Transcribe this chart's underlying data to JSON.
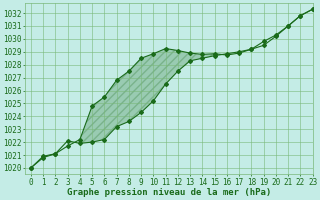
{
  "title": "Graphe pression niveau de la mer (hPa)",
  "background_color": "#c4ece6",
  "grid_color": "#7ab87a",
  "line_color": "#1a6b1a",
  "xlim": [
    -0.5,
    23
  ],
  "ylim": [
    1019.5,
    1032.8
  ],
  "xticks": [
    0,
    1,
    2,
    3,
    4,
    5,
    6,
    7,
    8,
    9,
    10,
    11,
    12,
    13,
    14,
    15,
    16,
    17,
    18,
    19,
    20,
    21,
    22,
    23
  ],
  "yticks": [
    1020,
    1021,
    1022,
    1023,
    1024,
    1025,
    1026,
    1027,
    1028,
    1029,
    1030,
    1031,
    1032
  ],
  "series1_x": [
    0,
    1,
    2,
    3,
    4,
    5,
    6,
    7,
    8,
    9,
    10,
    11,
    12,
    13,
    14,
    15,
    16,
    17,
    18,
    19,
    20,
    21,
    22,
    23
  ],
  "series1_y": [
    1020.0,
    1020.8,
    1021.1,
    1021.7,
    1022.2,
    1024.8,
    1025.5,
    1026.8,
    1027.5,
    1028.5,
    1028.85,
    1029.25,
    1029.1,
    1028.9,
    1028.8,
    1028.85,
    1028.75,
    1028.9,
    1029.2,
    1029.5,
    1030.2,
    1031.0,
    1031.8,
    1032.3
  ],
  "series2_x": [
    0,
    1,
    2,
    3,
    4,
    5,
    6,
    7,
    8,
    9,
    10,
    11,
    12,
    13,
    14,
    15,
    16,
    17,
    18,
    19,
    20,
    21,
    22,
    23
  ],
  "series2_y": [
    1020.0,
    1020.9,
    1021.1,
    1022.1,
    1021.9,
    1022.0,
    1022.2,
    1023.2,
    1023.6,
    1024.3,
    1025.2,
    1026.5,
    1027.5,
    1028.3,
    1028.5,
    1028.7,
    1028.85,
    1029.0,
    1029.2,
    1029.8,
    1030.3,
    1031.0,
    1031.8,
    1032.3
  ],
  "marker": "D",
  "markersize": 2.0,
  "linewidth": 0.8,
  "xlabel_fontsize": 6.5,
  "tick_fontsize": 5.5,
  "figwidth": 3.2,
  "figheight": 2.0,
  "dpi": 100
}
